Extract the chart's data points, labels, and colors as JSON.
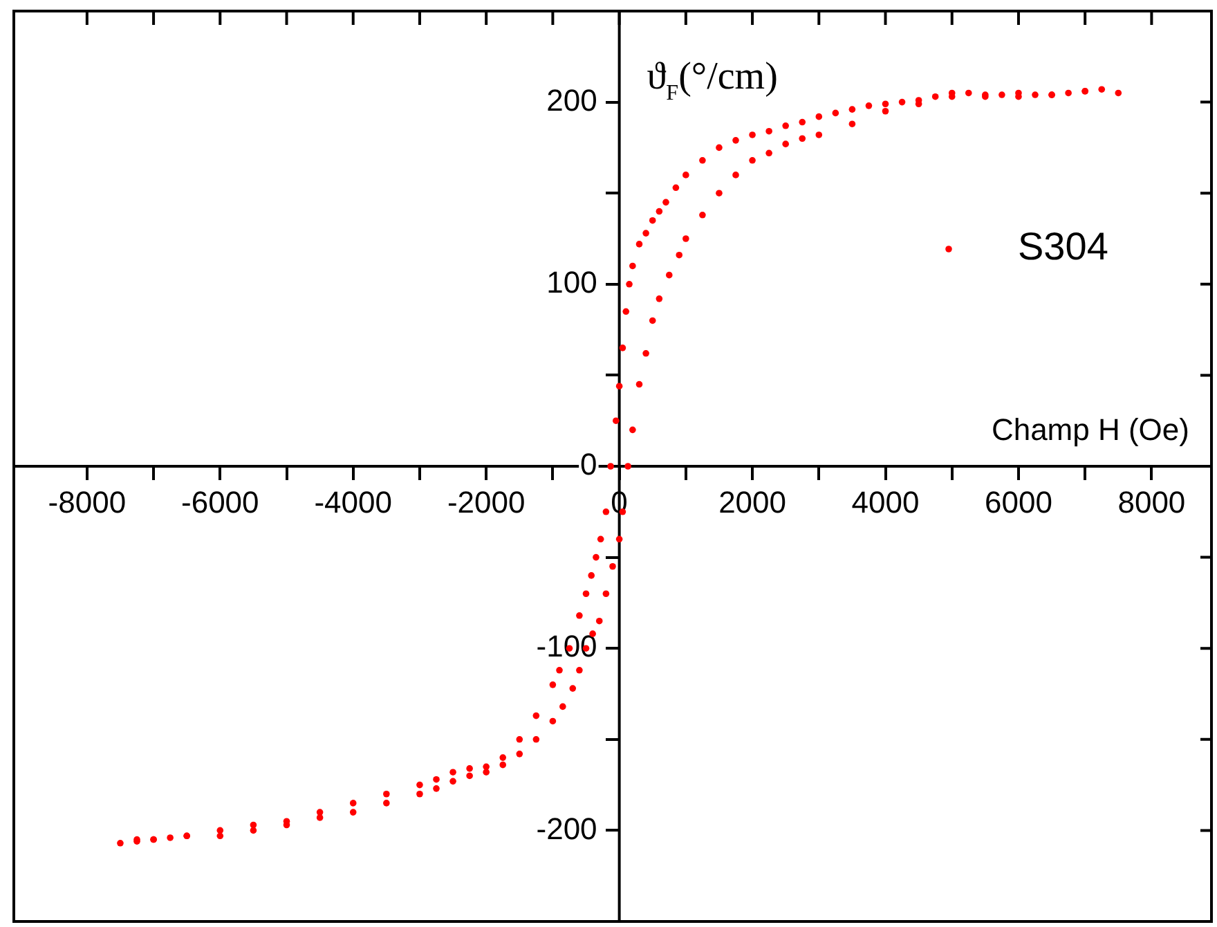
{
  "chart_data": {
    "type": "scatter",
    "marker": "circle",
    "xlabel": "Champ H (Oe)",
    "ylabel": "ϑ$_{F}$(°/cm)",
    "legend": "top right",
    "grid": false,
    "xlim": [
      -9100,
      8900
    ],
    "ylim": [
      -250,
      250
    ],
    "xticks": [
      -8000,
      {
        "value": -7000,
        "label": null
      },
      -6000,
      {
        "value": -5000,
        "label": null
      },
      -4000,
      {
        "value": -3000,
        "label": null
      },
      -2000,
      {
        "value": -1000,
        "label": null
      },
      0,
      {
        "value": 1000,
        "label": null
      },
      2000,
      {
        "value": 3000,
        "label": null
      },
      4000,
      {
        "value": 5000,
        "label": null
      },
      6000,
      {
        "value": 7000,
        "label": null
      },
      8000
    ],
    "yticks": [
      -200,
      {
        "value": -150,
        "label": null
      },
      -100,
      {
        "value": -50,
        "label": null
      },
      0,
      {
        "value": 50,
        "label": null
      },
      100,
      {
        "value": 150,
        "label": null
      },
      200
    ],
    "series": [
      {
        "name": "S304",
        "color": "#ff0000",
        "x": [
          7500,
          7250,
          7000,
          6750,
          6500,
          6250,
          6000,
          5750,
          5500,
          5250,
          5000,
          4750,
          4500,
          4250,
          4000,
          3750,
          3500,
          3250,
          3000,
          2750,
          2500,
          2250,
          2000,
          1750,
          1500,
          1250,
          1000,
          850,
          700,
          600,
          500,
          400,
          300,
          200,
          150,
          100,
          50,
          0,
          -50,
          -130,
          -200,
          -280,
          -350,
          -420,
          -500,
          -600,
          -750,
          -900,
          -1000,
          -1250,
          -1500,
          -1750,
          -2000,
          -2250,
          -2500,
          -2750,
          -3000,
          -3500,
          -4000,
          -4500,
          -5000,
          -5500,
          -6000,
          -6500,
          -7000,
          -7250,
          -7500,
          -7250,
          -7000,
          -6750,
          -6500,
          -6000,
          -5500,
          -5000,
          -4500,
          -4000,
          -3500,
          -3000,
          -2750,
          -2500,
          -2250,
          -2000,
          -1750,
          -1500,
          -1250,
          -1000,
          -850,
          -700,
          -600,
          -500,
          -400,
          -300,
          -200,
          -100,
          0,
          50,
          130,
          200,
          300,
          400,
          500,
          600,
          750,
          900,
          1000,
          1250,
          1500,
          1750,
          2000,
          2250,
          2500,
          2750,
          3000,
          3500,
          4000,
          4500,
          5000,
          5500,
          6000,
          6500,
          7000
        ],
        "values": [
          205,
          207,
          206,
          205,
          204,
          204,
          205,
          204,
          203,
          205,
          205,
          203,
          201,
          200,
          199,
          198,
          196,
          194,
          192,
          189,
          187,
          184,
          182,
          179,
          175,
          168,
          160,
          153,
          145,
          140,
          135,
          128,
          122,
          110,
          100,
          85,
          65,
          44,
          25,
          0,
          -25,
          -40,
          -50,
          -60,
          -70,
          -82,
          -100,
          -112,
          -120,
          -137,
          -150,
          -160,
          -165,
          -166,
          -168,
          -172,
          -175,
          -180,
          -185,
          -190,
          -195,
          -197,
          -200,
          -203,
          -205,
          -206,
          -207,
          -205,
          -205,
          -204,
          -203,
          -203,
          -200,
          -197,
          -193,
          -190,
          -185,
          -180,
          -177,
          -173,
          -170,
          -168,
          -164,
          -158,
          -150,
          -140,
          -132,
          -122,
          -112,
          -100,
          -92,
          -85,
          -70,
          -55,
          -40,
          -25,
          0,
          20,
          45,
          62,
          80,
          92,
          105,
          116,
          125,
          138,
          150,
          160,
          168,
          172,
          177,
          180,
          182,
          188,
          195,
          199,
          203,
          204,
          203,
          204,
          206
        ]
      }
    ]
  }
}
